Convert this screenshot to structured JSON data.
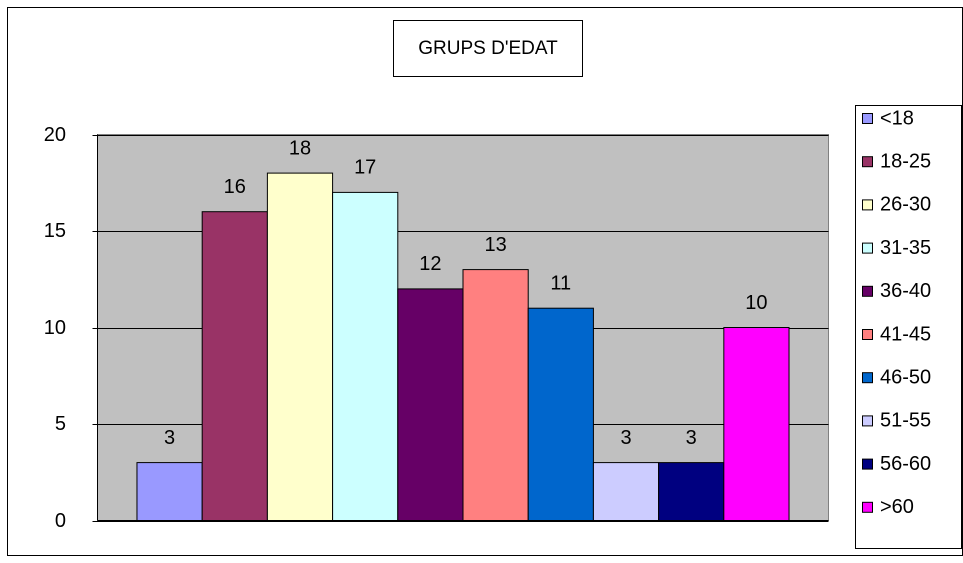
{
  "chart_data": {
    "type": "bar",
    "title": "GRUPS D'EDAT",
    "categories": [
      null
    ],
    "series": [
      {
        "name": "<18",
        "color": "#9999ff",
        "values": [
          3
        ]
      },
      {
        "name": "18-25",
        "color": "#993366",
        "values": [
          16
        ]
      },
      {
        "name": "26-30",
        "color": "#ffffcc",
        "values": [
          18
        ]
      },
      {
        "name": "31-35",
        "color": "#ccffff",
        "values": [
          17
        ]
      },
      {
        "name": "36-40",
        "color": "#660066",
        "values": [
          12
        ]
      },
      {
        "name": "41-45",
        "color": "#ff8080",
        "values": [
          13
        ]
      },
      {
        "name": "46-50",
        "color": "#0066cc",
        "values": [
          11
        ]
      },
      {
        "name": "51-55",
        "color": "#ccccff",
        "values": [
          3
        ]
      },
      {
        "name": "56-60",
        "color": "#000080",
        "values": [
          3
        ]
      },
      {
        "name": ">60",
        "color": "#ff00ff",
        "values": [
          10
        ]
      }
    ],
    "ylim": [
      0,
      20
    ],
    "yticks": [
      0,
      5,
      10,
      15,
      20
    ],
    "grid": true,
    "legend": "right",
    "data_labels": true
  }
}
